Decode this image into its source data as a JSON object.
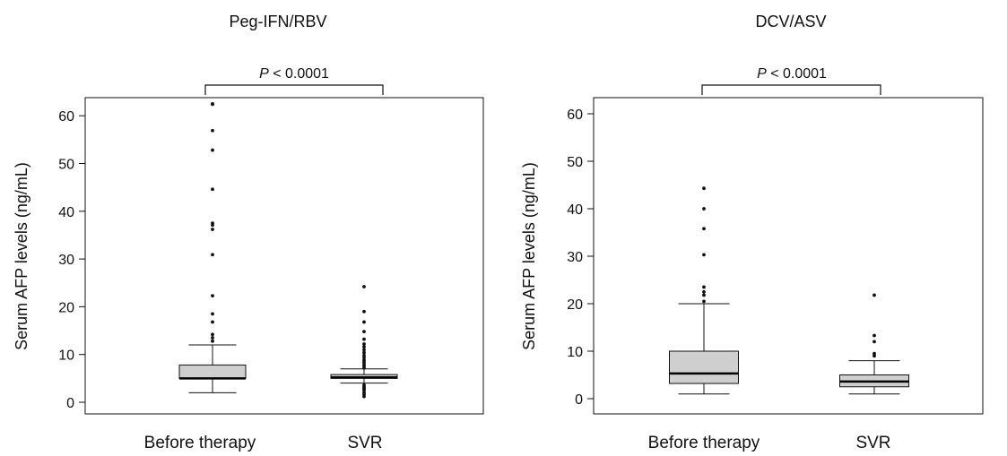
{
  "chart_data": [
    {
      "type": "box",
      "title": "Peg-IFN/RBV",
      "xlabel": "",
      "ylabel": "Serum AFP levels (ng/mL)",
      "ylim": [
        -2,
        64
      ],
      "yticks": [
        0,
        10,
        20,
        30,
        40,
        50,
        60
      ],
      "categories": [
        "Before therapy",
        "SVR"
      ],
      "boxes": [
        {
          "name": "Before therapy",
          "whisker_low": 2,
          "q1": 5,
          "median": 5,
          "q3": 7.8,
          "whisker_high": 12,
          "outliers": [
            12.8,
            13.5,
            14.2,
            16.8,
            18.5,
            22.3,
            30.9,
            36.2,
            37.1,
            37.5,
            44.6,
            52.8,
            56.9,
            62.4,
            62.5
          ]
        },
        {
          "name": "SVR",
          "whisker_low": 4,
          "q1": 5,
          "median": 5.2,
          "q3": 5.8,
          "whisker_high": 7,
          "outliers": [
            1.2,
            1.6,
            2.0,
            2.5,
            2.8,
            3.0,
            3.3,
            3.6,
            7.2,
            7.6,
            8.0,
            8.4,
            8.8,
            9.3,
            9.8,
            10.4,
            11.0,
            11.6,
            12.2,
            13.2,
            14.8,
            16.8,
            19.0,
            24.2
          ]
        }
      ],
      "comparison": {
        "label_italic": "P",
        "label_rest": " < 0.0001"
      }
    },
    {
      "type": "box",
      "title": "DCV/ASV",
      "xlabel": "",
      "ylabel": "Serum AFP levels (ng/mL)",
      "ylim": [
        -2,
        64
      ],
      "yticks": [
        0,
        10,
        20,
        30,
        40,
        50,
        60
      ],
      "categories": [
        "Before therapy",
        "SVR"
      ],
      "boxes": [
        {
          "name": "Before therapy",
          "whisker_low": 1,
          "q1": 3.2,
          "median": 5.3,
          "q3": 10,
          "whisker_high": 20,
          "outliers": [
            20.5,
            21.8,
            22.5,
            23.5,
            30.3,
            35.8,
            40.0,
            44.3
          ]
        },
        {
          "name": "SVR",
          "whisker_low": 1,
          "q1": 2.5,
          "median": 3.6,
          "q3": 5,
          "whisker_high": 8,
          "outliers": [
            9.0,
            9.5,
            12.0,
            13.3,
            21.8
          ]
        }
      ],
      "comparison": {
        "label_italic": "P",
        "label_rest": " < 0.0001"
      }
    }
  ]
}
